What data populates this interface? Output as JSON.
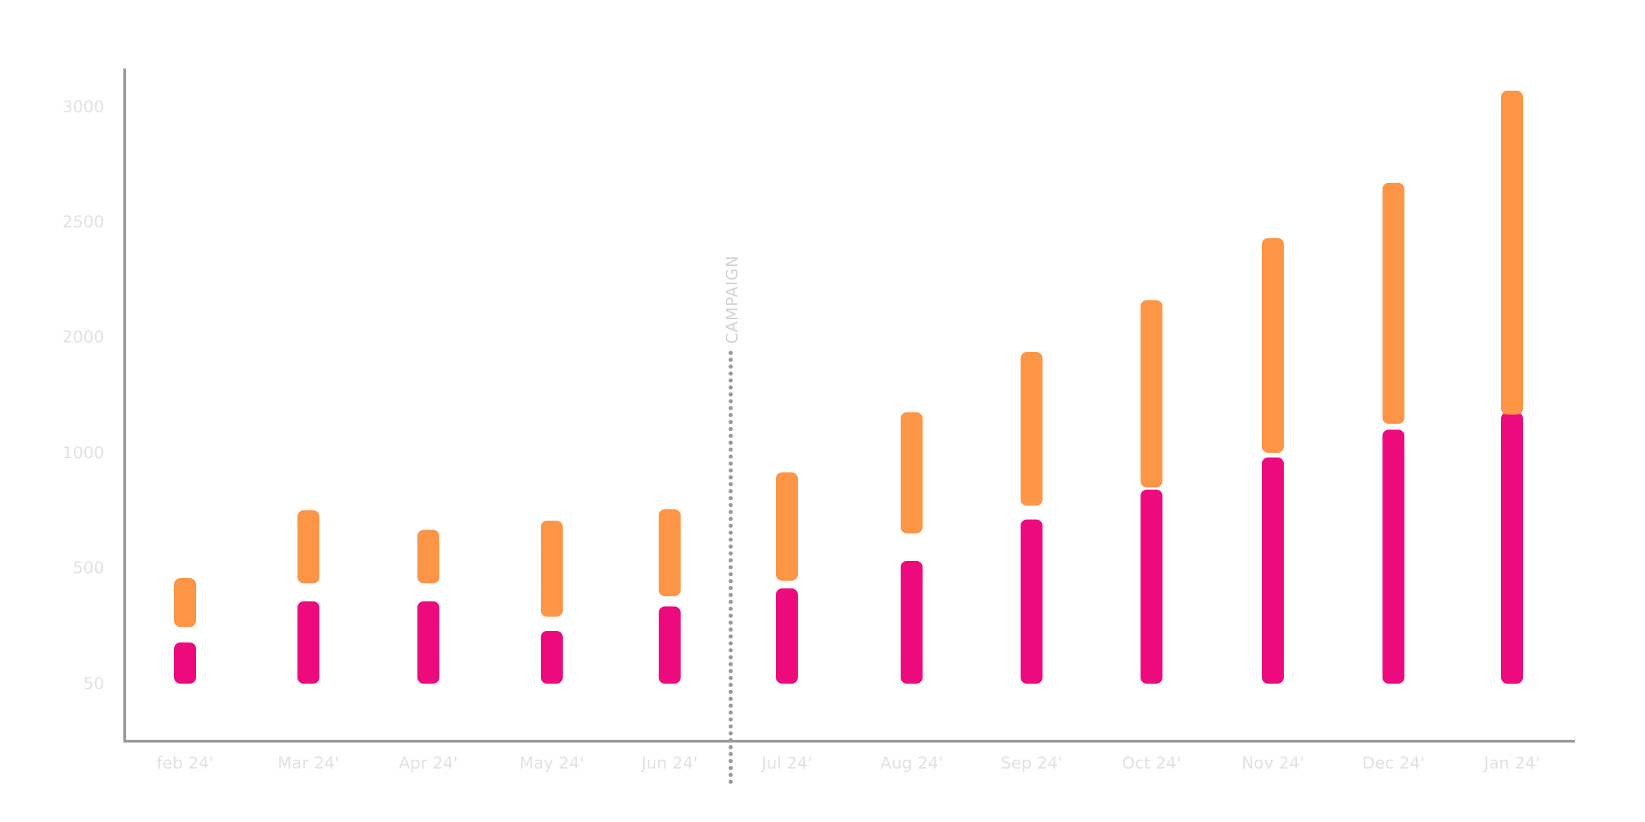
{
  "chart_data": {
    "type": "bar",
    "categories": [
      "feb 24'",
      "Mar 24'",
      "Apr 24'",
      "May 24'",
      "Jun 24'",
      "Jul 24'",
      "Aug 24'",
      "Sep 24'",
      "Oct 24'",
      "Nov 24'",
      "Dec 24'",
      "Jan 24'"
    ],
    "y_ticks": [
      "50",
      "500",
      "1000",
      "2000",
      "2500",
      "3000"
    ],
    "series": [
      {
        "color": "#ed0a7c",
        "ranges": [
          [
            50,
            210
          ],
          [
            50,
            370
          ],
          [
            50,
            370
          ],
          [
            50,
            255
          ],
          [
            50,
            350
          ],
          [
            50,
            420
          ],
          [
            50,
            530
          ],
          [
            50,
            710
          ],
          [
            50,
            840
          ],
          [
            50,
            980
          ],
          [
            50,
            1200
          ],
          [
            50,
            1350
          ]
        ]
      },
      {
        "color": "#fd9546",
        "ranges": [
          [
            270,
            460
          ],
          [
            440,
            750
          ],
          [
            440,
            665
          ],
          [
            310,
            705
          ],
          [
            390,
            755
          ],
          [
            450,
            915
          ],
          [
            650,
            1350
          ],
          [
            770,
            1870
          ],
          [
            850,
            2160
          ],
          [
            1000,
            2430
          ],
          [
            1250,
            2670
          ],
          [
            1330,
            3070
          ]
        ]
      }
    ],
    "annotation": {
      "label": "CAMPAIGN",
      "between": [
        "Jun 24'",
        "Jul 24'"
      ]
    },
    "grid": false,
    "legend": "none"
  }
}
